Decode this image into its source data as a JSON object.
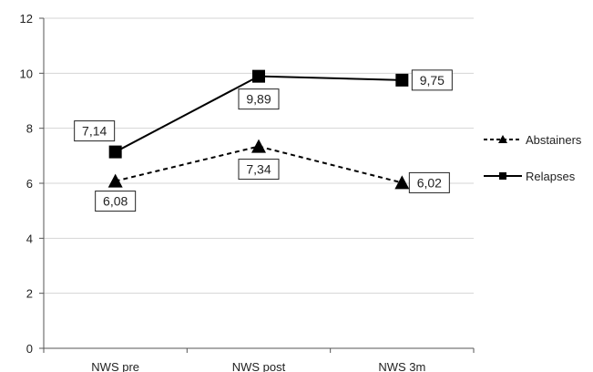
{
  "chart_data": {
    "type": "line",
    "categories": [
      "NWS pre",
      "NWS post",
      "NWS 3m"
    ],
    "ylim": [
      0,
      12
    ],
    "yticks": [
      0,
      2,
      4,
      6,
      8,
      10,
      12
    ],
    "grid": "horizontal",
    "legend": "right",
    "series": [
      {
        "name": "Abstainers",
        "values": [
          6.08,
          7.34,
          6.02
        ],
        "labels": [
          "6,08",
          "7,34",
          "6,02"
        ],
        "line_style": "dashed",
        "marker": "triangle",
        "color": "#000000"
      },
      {
        "name": "Relapses",
        "values": [
          7.14,
          9.89,
          9.75
        ],
        "labels": [
          "7,14",
          "9,89",
          "9,75"
        ],
        "line_style": "solid",
        "marker": "square",
        "color": "#000000"
      }
    ]
  }
}
